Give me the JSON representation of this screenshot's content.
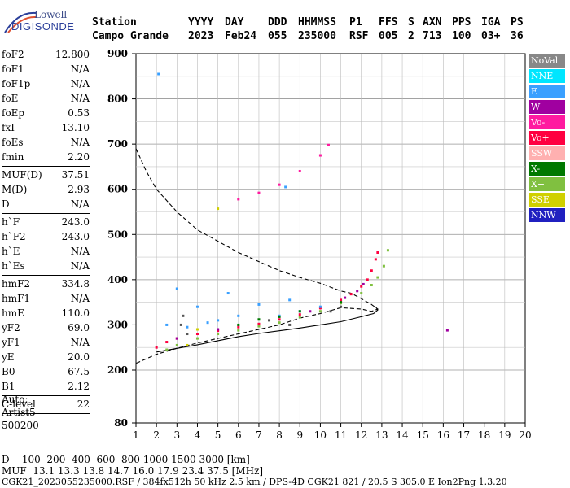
{
  "logo": {
    "line1": "Lowell",
    "line2": "DIGISONDE"
  },
  "header": {
    "row1": {
      "label": "Station",
      "yyyy": "YYYY",
      "day": "DAY",
      "ddd": "DDD",
      "hhmmss": "HHMMSS",
      "p1": "P1",
      "ffs": "FFS",
      "s": "S",
      "axn": "AXN",
      "pps": "PPS",
      "iga": "IGA",
      "ps": "PS"
    },
    "row2": {
      "label": "Campo Grande",
      "yyyy": "2023",
      "day": "Feb24",
      "ddd": "055",
      "hhmmss": "235000",
      "p1": "RSF",
      "ffs": "005",
      "s": "2",
      "axn": "713",
      "pps": "100",
      "iga": "03+",
      "ps": "36"
    }
  },
  "params": {
    "group1": [
      {
        "name": "foF2",
        "value": "12.800"
      },
      {
        "name": "foF1",
        "value": "N/A"
      },
      {
        "name": "foF1p",
        "value": "N/A"
      },
      {
        "name": "foE",
        "value": "N/A"
      },
      {
        "name": "foEp",
        "value": "0.53"
      },
      {
        "name": "fxI",
        "value": "13.10"
      },
      {
        "name": "foEs",
        "value": "N/A"
      },
      {
        "name": "fmin",
        "value": "2.20"
      }
    ],
    "group2": [
      {
        "name": "MUF(D)",
        "value": "37.51"
      },
      {
        "name": "M(D)",
        "value": "2.93"
      },
      {
        "name": "D",
        "value": "N/A"
      }
    ],
    "group3": [
      {
        "name": "h`F",
        "value": "243.0"
      },
      {
        "name": "h`F2",
        "value": "243.0"
      },
      {
        "name": "h`E",
        "value": "N/A"
      },
      {
        "name": "h`Es",
        "value": "N/A"
      }
    ],
    "group4": [
      {
        "name": "hmF2",
        "value": "334.8"
      },
      {
        "name": "hmF1",
        "value": "N/A"
      },
      {
        "name": "hmE",
        "value": "110.0"
      },
      {
        "name": "yF2",
        "value": "69.0"
      },
      {
        "name": "yF1",
        "value": "N/A"
      },
      {
        "name": "yE",
        "value": "20.0"
      },
      {
        "name": "B0",
        "value": "67.5"
      },
      {
        "name": "B1",
        "value": "2.12"
      }
    ],
    "group5": [
      {
        "name": "C-level",
        "value": "22"
      }
    ]
  },
  "auto": {
    "line1": "Auto:",
    "line2": "Artist5",
    "line3": "500200"
  },
  "legend": [
    {
      "label": "NoVal",
      "color": "#888888"
    },
    {
      "label": "NNE",
      "color": "#00e6ff"
    },
    {
      "label": "E",
      "color": "#3aa0ff"
    },
    {
      "label": "W",
      "color": "#a000a0"
    },
    {
      "label": "Vo-",
      "color": "#ff1aa0"
    },
    {
      "label": "Vo+",
      "color": "#ff0040"
    },
    {
      "label": "SSW",
      "color": "#ffb0b0"
    },
    {
      "label": "X-",
      "color": "#007800"
    },
    {
      "label": "X+",
      "color": "#80c040"
    },
    {
      "label": "SSE",
      "color": "#d0d000"
    },
    {
      "label": "NNW",
      "color": "#2020c0"
    }
  ],
  "bottom": {
    "row_d_label": "D",
    "row_d_values": "100  200  400  600  800 1000 1500 3000 [km]",
    "row_muf_label": "MUF",
    "row_muf_values": "13.1 13.3 13.8 14.7 16.0 17.9 23.4 37.5 [MHz]",
    "footer": "CGK21_2023055235000.RSF / 384fx512h 50 kHz 2.5 km / DPS-4D CGK21 821 / 20.5 S 305.0 E Ion2Png 1.3.20"
  },
  "chart_data": {
    "type": "scatter",
    "title": "",
    "xlabel": "",
    "ylabel": "",
    "xlim": [
      1,
      20
    ],
    "ylim": [
      80,
      900
    ],
    "x_ticks": [
      1,
      2,
      3,
      4,
      5,
      6,
      7,
      8,
      9,
      10,
      11,
      12,
      13,
      14,
      15,
      16,
      17,
      18,
      19,
      20
    ],
    "y_ticks": [
      80,
      200,
      300,
      400,
      500,
      600,
      700,
      800,
      900
    ],
    "grid": true,
    "traces": [
      {
        "name": "Vo+",
        "color": "#ff0040",
        "points": [
          [
            2.0,
            250
          ],
          [
            2.5,
            262
          ],
          [
            3.0,
            270
          ],
          [
            4.0,
            280
          ],
          [
            5.0,
            287
          ],
          [
            6.0,
            295
          ],
          [
            7.0,
            302
          ],
          [
            8.0,
            312
          ],
          [
            9.0,
            323
          ],
          [
            10.0,
            337
          ],
          [
            11.0,
            355
          ],
          [
            11.5,
            368
          ],
          [
            12.0,
            385
          ],
          [
            12.3,
            400
          ],
          [
            12.5,
            420
          ],
          [
            12.7,
            445
          ],
          [
            12.8,
            460
          ]
        ]
      },
      {
        "name": "X+",
        "color": "#80c040",
        "points": [
          [
            2.5,
            245
          ],
          [
            3.0,
            255
          ],
          [
            4.0,
            270
          ],
          [
            5.0,
            280
          ],
          [
            6.0,
            288
          ],
          [
            7.0,
            297
          ],
          [
            8.0,
            305
          ],
          [
            9.0,
            317
          ],
          [
            10.0,
            330
          ],
          [
            11.0,
            348
          ],
          [
            12.0,
            370
          ],
          [
            12.5,
            388
          ],
          [
            12.8,
            405
          ],
          [
            13.1,
            430
          ],
          [
            13.3,
            465
          ]
        ]
      },
      {
        "name": "Vo- oblique",
        "color": "#ff1aa0",
        "points": [
          [
            6.0,
            578
          ],
          [
            7.0,
            592
          ],
          [
            8.0,
            610
          ],
          [
            9.0,
            640
          ],
          [
            10.0,
            675
          ],
          [
            10.4,
            698
          ]
        ]
      },
      {
        "name": "E scatter",
        "color": "#3aa0ff",
        "points": [
          [
            2.5,
            300
          ],
          [
            3.0,
            380
          ],
          [
            3.5,
            295
          ],
          [
            4.0,
            340
          ],
          [
            4.5,
            305
          ],
          [
            5.0,
            310
          ],
          [
            5.5,
            370
          ],
          [
            6.0,
            320
          ],
          [
            7.0,
            345
          ],
          [
            8.0,
            320
          ],
          [
            8.5,
            355
          ],
          [
            9.0,
            330
          ],
          [
            10.0,
            340
          ],
          [
            2.1,
            855
          ],
          [
            8.3,
            605
          ]
        ]
      },
      {
        "name": "NoVal",
        "color": "#555555",
        "points": [
          [
            3.2,
            300
          ],
          [
            3.3,
            320
          ],
          [
            3.5,
            280
          ],
          [
            7.5,
            310
          ],
          [
            8.5,
            300
          ],
          [
            10.5,
            330
          ],
          [
            11.0,
            340
          ]
        ]
      },
      {
        "name": "W",
        "color": "#a000a0",
        "points": [
          [
            3.0,
            270
          ],
          [
            5.0,
            290
          ],
          [
            9.5,
            330
          ],
          [
            11.2,
            360
          ],
          [
            11.8,
            375
          ],
          [
            12.1,
            390
          ],
          [
            16.2,
            288
          ]
        ]
      },
      {
        "name": "X-",
        "color": "#007800",
        "points": [
          [
            6.0,
            300
          ],
          [
            7.0,
            312
          ],
          [
            8.0,
            318
          ],
          [
            9.0,
            330
          ],
          [
            11.0,
            350
          ]
        ]
      },
      {
        "name": "SSE",
        "color": "#d0d000",
        "points": [
          [
            5.0,
            557
          ],
          [
            4.0,
            290
          ],
          [
            3.5,
            255
          ]
        ]
      }
    ],
    "profile_curve": {
      "style": "solid",
      "x": [
        2.0,
        3.0,
        4.0,
        5.0,
        6.0,
        7.0,
        8.0,
        9.0,
        10.0,
        11.0,
        12.0,
        12.6,
        12.8,
        12.7
      ],
      "y": [
        240,
        248,
        256,
        265,
        274,
        281,
        287,
        293,
        300,
        307,
        318,
        325,
        333,
        340
      ]
    },
    "scale_curve": {
      "style": "dashed",
      "x": [
        1.0,
        1.5,
        2.0,
        3.0,
        4.0,
        5.0,
        6.0,
        7.0,
        8.0,
        9.0,
        10.0,
        11.0,
        11.5,
        12.0,
        12.5,
        12.8,
        12.5,
        12.0,
        11.0,
        10.0,
        9.0,
        8.0,
        7.0,
        6.0,
        5.0,
        4.0,
        3.0,
        2.0,
        1.0
      ],
      "y": [
        690,
        640,
        600,
        550,
        510,
        485,
        460,
        440,
        420,
        405,
        392,
        375,
        370,
        358,
        345,
        335,
        330,
        335,
        338,
        325,
        315,
        300,
        290,
        280,
        270,
        260,
        248,
        235,
        215
      ]
    }
  }
}
